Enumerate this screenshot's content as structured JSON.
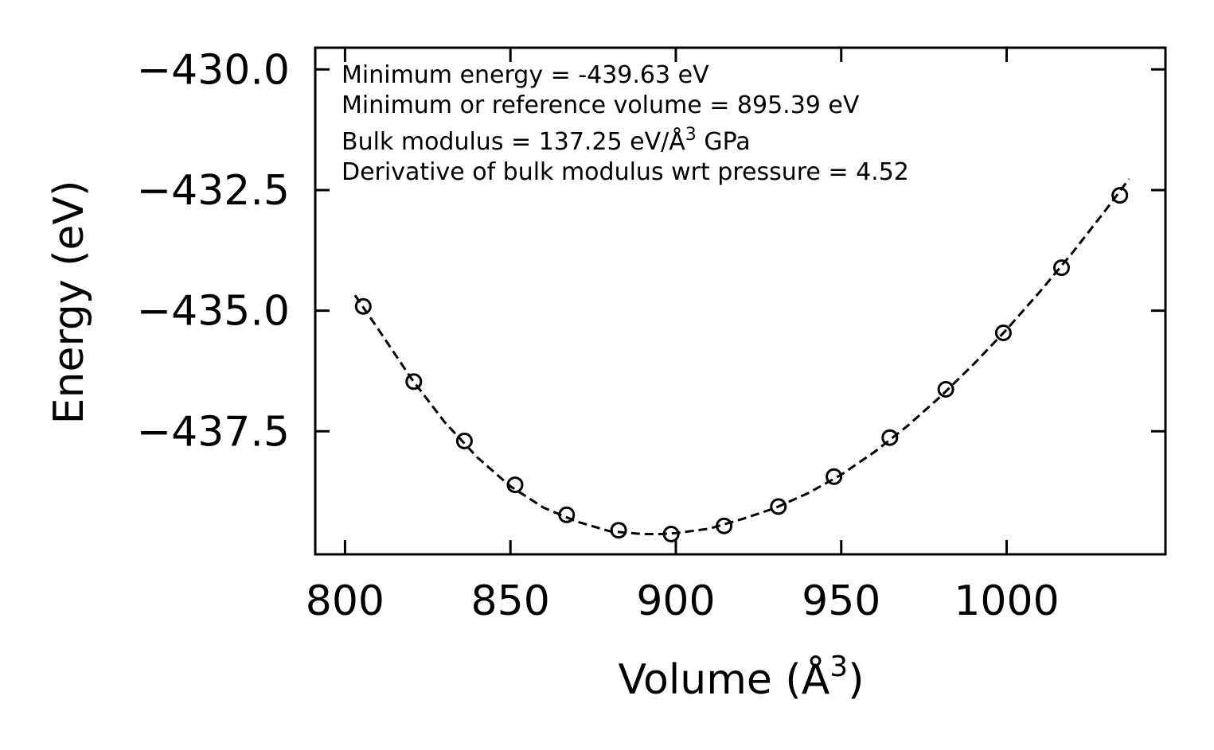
{
  "chart_data": {
    "type": "scatter",
    "title": "",
    "xlabel": "Volume (Å",
    "xlabel_sup": "3",
    "xlabel_suffix": ")",
    "ylabel": "Energy (eV)",
    "xlim": [
      791,
      1048
    ],
    "ylim": [
      -440.05,
      -429.55
    ],
    "xticks": [
      800,
      850,
      900,
      950,
      1000
    ],
    "xtick_labels": [
      "800",
      "850",
      "900",
      "950",
      "1000"
    ],
    "yticks": [
      -430.0,
      -432.5,
      -435.0,
      -437.5
    ],
    "ytick_labels": [
      "−430.0",
      "−432.5",
      "−435.0",
      "−437.5"
    ],
    "series": [
      {
        "name": "data",
        "style": "open-circle",
        "x": [
          805.5,
          820.8,
          836.1,
          851.4,
          867.0,
          882.7,
          898.6,
          914.6,
          931.0,
          947.8,
          964.7,
          981.6,
          999.0,
          1016.6,
          1034.2
        ],
        "y": [
          -434.91,
          -436.47,
          -437.7,
          -438.61,
          -439.23,
          -439.55,
          -439.63,
          -439.46,
          -439.06,
          -438.44,
          -437.63,
          -436.63,
          -435.46,
          -434.11,
          -432.61
        ]
      },
      {
        "name": "fit",
        "style": "dashed-line",
        "x": [
          803,
          810,
          820,
          830,
          840,
          850,
          860,
          870,
          880,
          890,
          895.39,
          900,
          910,
          920,
          930,
          940,
          950,
          960,
          970,
          980,
          990,
          1000,
          1010,
          1020,
          1030,
          1037
        ],
        "y": [
          -434.68,
          -435.38,
          -436.4,
          -437.3,
          -438.04,
          -438.64,
          -439.08,
          -439.37,
          -439.57,
          -439.63,
          -439.63,
          -439.61,
          -439.52,
          -439.32,
          -439.09,
          -438.78,
          -438.4,
          -437.93,
          -437.39,
          -436.78,
          -436.11,
          -435.39,
          -434.61,
          -433.79,
          -432.91,
          -432.27
        ]
      }
    ],
    "annotations": [
      "Minimum energy = -439.63 eV",
      "Minimum or reference volume = 895.39 eV",
      "Bulk modulus = 137.25 eV/Å",
      "Derivative of bulk modulus wrt pressure = 4.52"
    ],
    "annotation_bulk_sup": "3",
    "annotation_bulk_suffix": " GPa",
    "grid": false,
    "legend": "none"
  }
}
